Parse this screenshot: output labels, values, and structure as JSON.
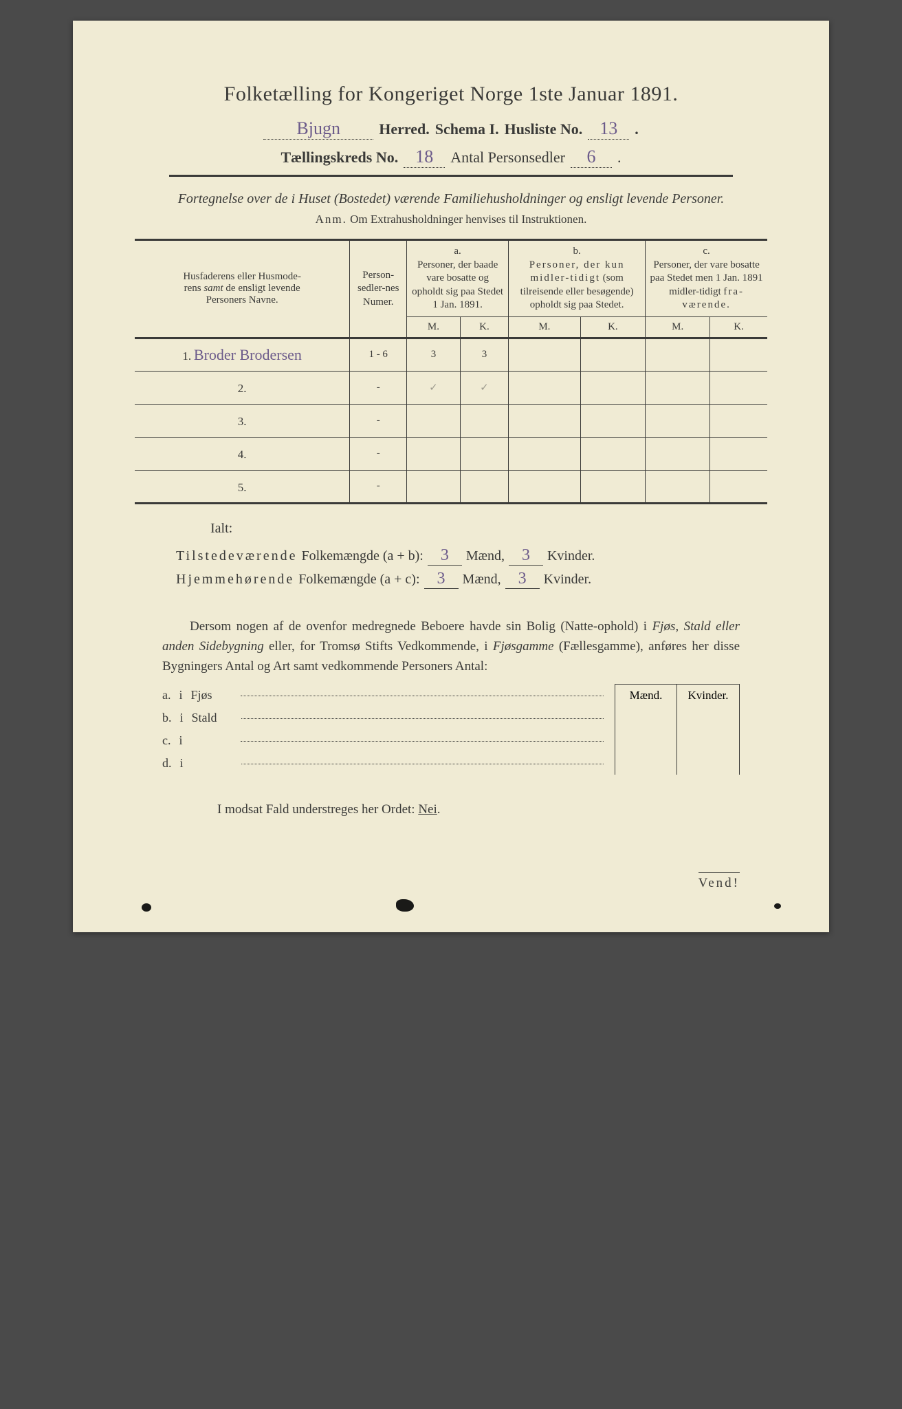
{
  "colors": {
    "paper": "#f0ebd4",
    "ink": "#3a3a38",
    "handwriting": "#6b5a8a",
    "background": "#4a4a4a"
  },
  "title": "Folketælling for Kongeriget Norge 1ste Januar 1891.",
  "header": {
    "herred_value": "Bjugn",
    "herred_label": "Herred.",
    "schema_label": "Schema I.",
    "husliste_label": "Husliste No.",
    "husliste_value": "13",
    "kreds_label": "Tællingskreds No.",
    "kreds_value": "18",
    "personsedler_label": "Antal Personsedler",
    "personsedler_value": "6"
  },
  "subtitle": "Fortegnelse over de i Huset (Bostedet) værende Familiehusholdninger og ensligt levende Personer.",
  "anm_label": "Anm.",
  "anm_text": "Om Extrahusholdninger henvises til Instruktionen.",
  "table": {
    "col_name": "Husfaderens eller Husmoderens samt de ensligt levende Personers Navne.",
    "col_name_samt": "samt",
    "col_num": "Person-sedler-nes Numer.",
    "col_a_label": "a.",
    "col_a": "Personer, der baade vare bosatte og opholdt sig paa Stedet 1 Jan. 1891.",
    "col_b_label": "b.",
    "col_b": "Personer, der kun midler-tidigt (som tilreisende eller besøgende) opholdt sig paa Stedet.",
    "col_c_label": "c.",
    "col_c": "Personer, der vare bosatte paa Stedet men 1 Jan. 1891 midler-tidigt fra-værende.",
    "mk_m": "M.",
    "mk_k": "K.",
    "rows": [
      {
        "n": "1.",
        "name": "Broder Brodersen",
        "num": "1 - 6",
        "a_m": "3",
        "a_k": "3",
        "b_m": "",
        "b_k": "",
        "c_m": "",
        "c_k": ""
      },
      {
        "n": "2.",
        "name": "",
        "num": "-",
        "a_m": "✓",
        "a_k": "✓",
        "b_m": "",
        "b_k": "",
        "c_m": "",
        "c_k": ""
      },
      {
        "n": "3.",
        "name": "",
        "num": "-",
        "a_m": "",
        "a_k": "",
        "b_m": "",
        "b_k": "",
        "c_m": "",
        "c_k": ""
      },
      {
        "n": "4.",
        "name": "",
        "num": "-",
        "a_m": "",
        "a_k": "",
        "b_m": "",
        "b_k": "",
        "c_m": "",
        "c_k": ""
      },
      {
        "n": "5.",
        "name": "",
        "num": "-",
        "a_m": "",
        "a_k": "",
        "b_m": "",
        "b_k": "",
        "c_m": "",
        "c_k": ""
      }
    ]
  },
  "ialt": "Ialt:",
  "sums": {
    "line1_label": "Tilstedeværende",
    "line1_word": "Folkemængde (a + b):",
    "line2_label": "Hjemmehørende",
    "line2_word": "Folkemængde (a + c):",
    "maend": "Mænd,",
    "kvinder": "Kvinder.",
    "l1_m": "3",
    "l1_k": "3",
    "l2_m": "3",
    "l2_k": "3"
  },
  "para": {
    "p1": "Dersom nogen af de ovenfor medregnede Beboere havde sin Bolig (Natte-ophold) i ",
    "p2": "Fjøs, Stald eller anden Sidebygning",
    "p3": " eller, for Tromsø Stifts Vedkommende, i ",
    "p4": "Fjøsgamme",
    "p5": " (Fællesgamme), anføres her disse Bygningers Antal og Art samt vedkommende Personers Antal:"
  },
  "sb": {
    "maend": "Mænd.",
    "kvinder": "Kvinder.",
    "rows": [
      {
        "l": "a.",
        "i": "i",
        "t": "Fjøs"
      },
      {
        "l": "b.",
        "i": "i",
        "t": "Stald"
      },
      {
        "l": "c.",
        "i": "i",
        "t": ""
      },
      {
        "l": "d.",
        "i": "i",
        "t": ""
      }
    ]
  },
  "modsat_pre": "I modsat Fald understreges her Ordet: ",
  "modsat_word": "Nei",
  "vend": "Vend!"
}
